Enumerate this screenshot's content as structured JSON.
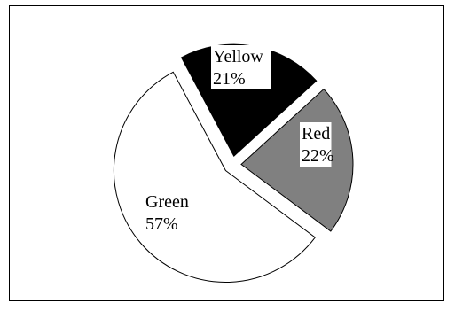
{
  "chart_data": {
    "type": "pie",
    "title": "",
    "slices": [
      {
        "label": "Yellow",
        "value": 21,
        "value_label": "21%",
        "color": "#000000",
        "exploded": true
      },
      {
        "label": "Red",
        "value": 22,
        "value_label": "22%",
        "color": "#808080",
        "exploded": true
      },
      {
        "label": "Green",
        "value": 57,
        "value_label": "57%",
        "color": "#ffffff",
        "exploded": true
      }
    ],
    "legend": "none"
  }
}
